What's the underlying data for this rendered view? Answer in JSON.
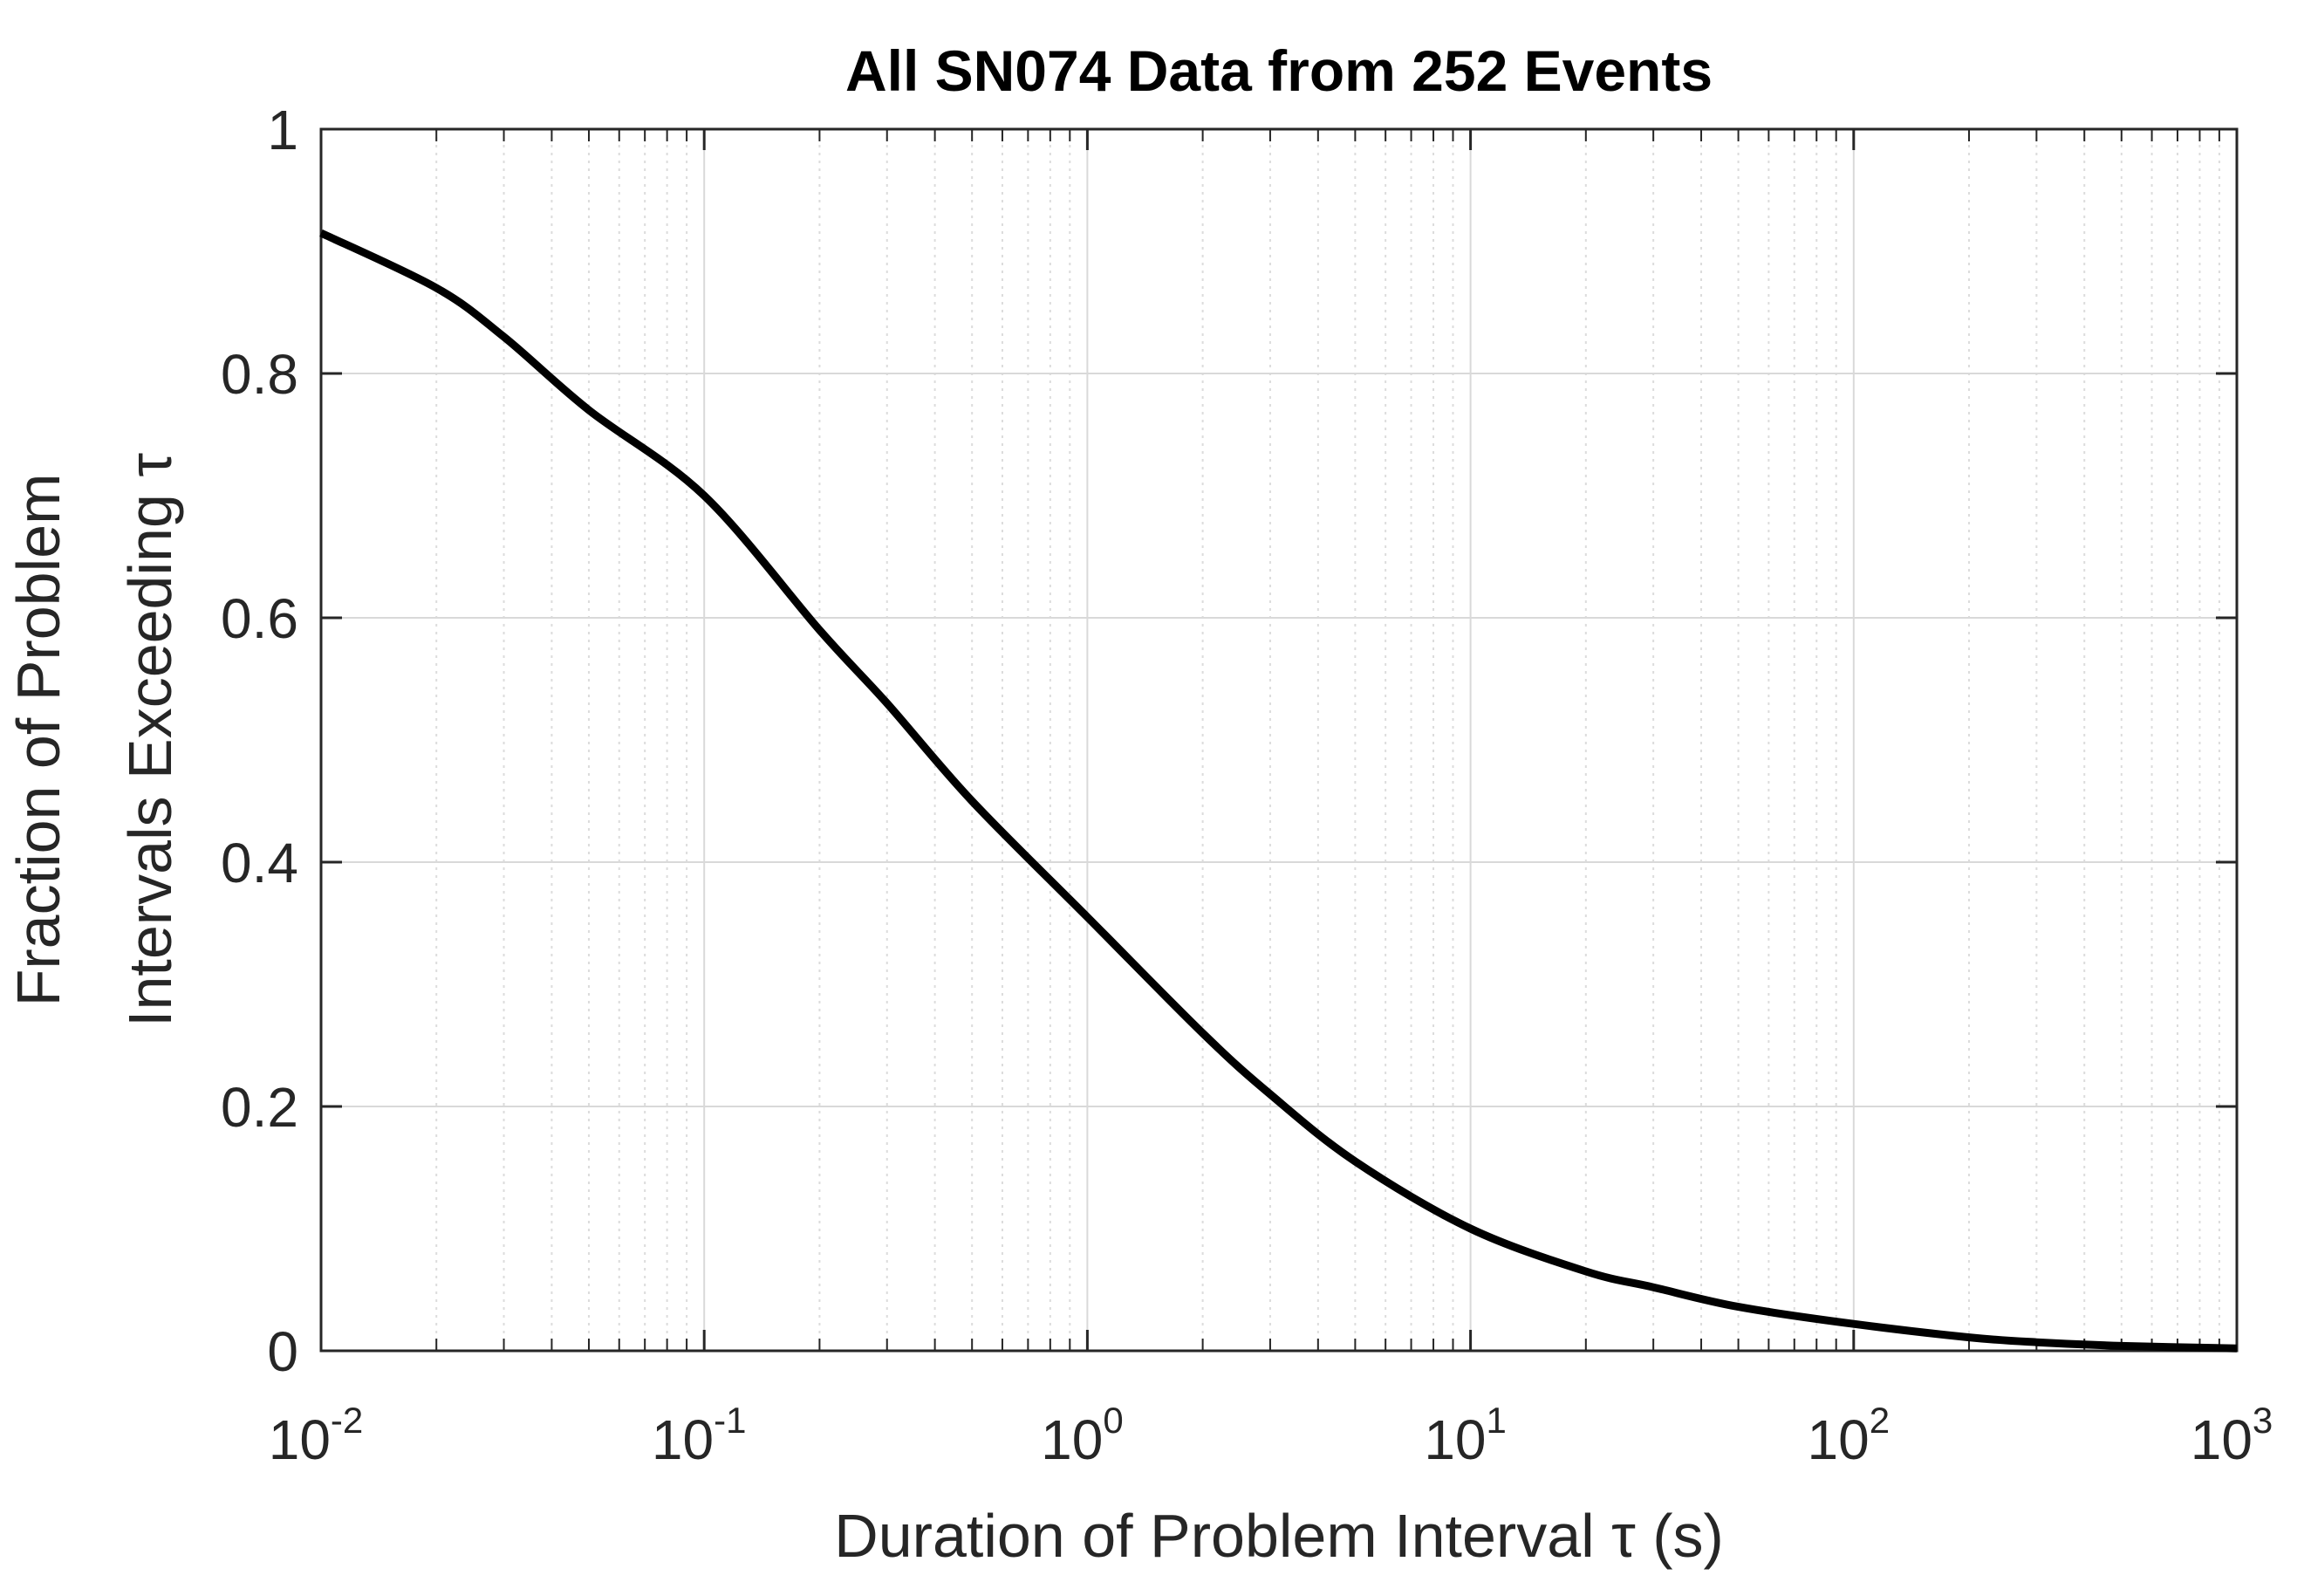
{
  "chart_data": {
    "type": "line",
    "title": "All SN074 Data from 252 Events",
    "xlabel": "Duration of Problem Interval τ (s)",
    "ylabel": [
      "Fraction of Problem",
      "Intervals Exceeding τ"
    ],
    "xscale": "log",
    "xlim": [
      0.01,
      1000
    ],
    "ylim": [
      0,
      1
    ],
    "grid": true,
    "x_ticks": [
      {
        "base": "10",
        "exp": "-2"
      },
      {
        "base": "10",
        "exp": "-1"
      },
      {
        "base": "10",
        "exp": "0"
      },
      {
        "base": "10",
        "exp": "1"
      },
      {
        "base": "10",
        "exp": "2"
      },
      {
        "base": "10",
        "exp": "3"
      }
    ],
    "y_ticks": [
      "0",
      "0.2",
      "0.4",
      "0.6",
      "0.8",
      "1"
    ],
    "series": [
      {
        "name": "SN074",
        "color": "#000000",
        "x": [
          0.01,
          0.02,
          0.03,
          0.05,
          0.1,
          0.2,
          0.3,
          0.5,
          1,
          2,
          3,
          5,
          10,
          20,
          30,
          50,
          100,
          200,
          300,
          500,
          1000
        ],
        "y": [
          0.915,
          0.87,
          0.83,
          0.77,
          0.7,
          0.59,
          0.53,
          0.45,
          0.355,
          0.26,
          0.21,
          0.155,
          0.1,
          0.065,
          0.052,
          0.036,
          0.022,
          0.011,
          0.007,
          0.004,
          0.002
        ]
      }
    ]
  }
}
